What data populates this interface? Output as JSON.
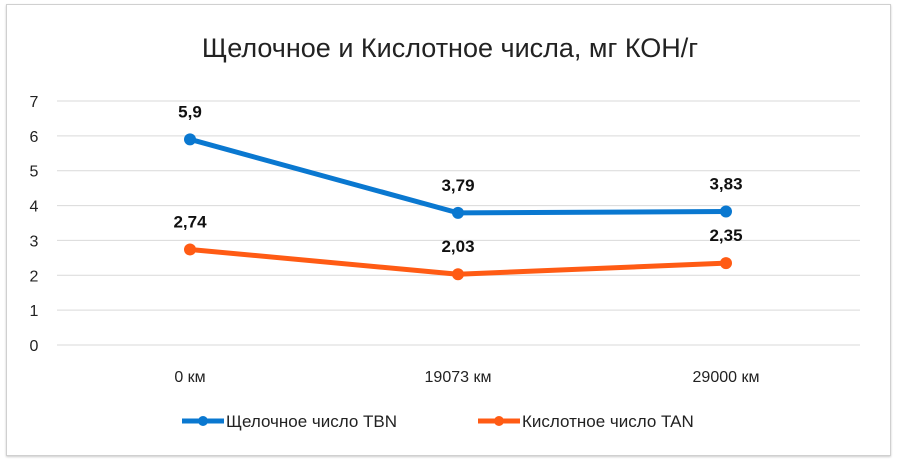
{
  "chart_data": {
    "type": "line",
    "title": "Щелочное и Кислотное числа, мг КОН/г",
    "categories": [
      "0 км",
      "19073 км",
      "29000 км"
    ],
    "series": [
      {
        "name": "Щелочное число TBN",
        "color": "#0a78d0",
        "values": [
          5.9,
          3.79,
          3.83
        ],
        "labels": [
          "5,9",
          "3,79",
          "3,83"
        ]
      },
      {
        "name": "Кислотное число TAN",
        "color": "#ff5b14",
        "values": [
          2.74,
          2.03,
          2.35
        ],
        "labels": [
          "2,74",
          "2,03",
          "2,35"
        ]
      }
    ],
    "yticks": [
      "0",
      "1",
      "2",
      "3",
      "4",
      "5",
      "6",
      "7"
    ],
    "ylim": [
      0,
      7
    ],
    "grid": true,
    "legend": "bottom",
    "xlabel": "",
    "ylabel": ""
  }
}
